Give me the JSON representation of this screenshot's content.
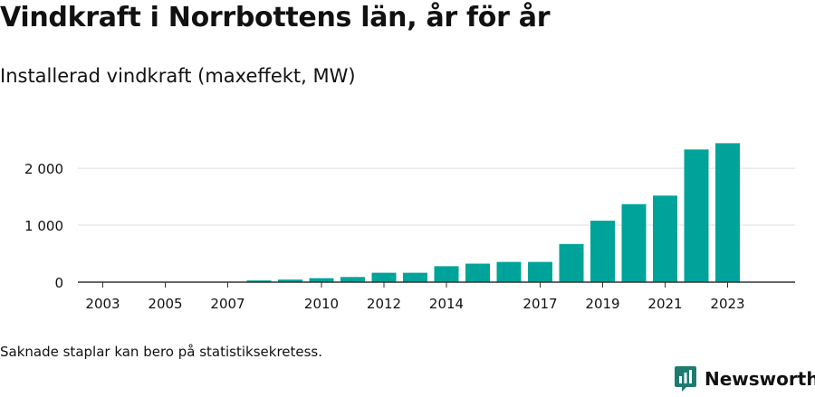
{
  "page": {
    "title": "Vindkraft i Norrbottens län, år för år",
    "subtitle": "Installerad vindkraft (maxeffekt, MW)",
    "footnote": "Saknade staplar kan bero på statistiksekretess.",
    "brand": "Newsworthy"
  },
  "colors": {
    "bar": "#00a39a",
    "grid": "#dddddd",
    "axis": "#333333",
    "text": "#111111"
  },
  "chart_data": {
    "type": "bar",
    "categories": [
      "2003",
      "2004",
      "2005",
      "2006",
      "2007",
      "2008",
      "2009",
      "2010",
      "2011",
      "2012",
      "2013",
      "2014",
      "2015",
      "2016",
      "2017",
      "2018",
      "2019",
      "2020",
      "2021",
      "2022",
      "2023"
    ],
    "values": [
      0,
      0,
      0,
      0,
      0,
      30,
      45,
      70,
      90,
      165,
      165,
      280,
      325,
      355,
      355,
      670,
      1080,
      1370,
      1520,
      2330,
      2440
    ],
    "x_tick_labels": [
      "2003",
      "2005",
      "2007",
      "2010",
      "2012",
      "2014",
      "2017",
      "2019",
      "2021",
      "2023"
    ],
    "y_ticks": [
      0,
      1000,
      2000
    ],
    "y_tick_labels": [
      "0",
      "1 000",
      "2 000"
    ],
    "ylim": [
      0,
      2700
    ],
    "grid": true,
    "legend": "none"
  }
}
